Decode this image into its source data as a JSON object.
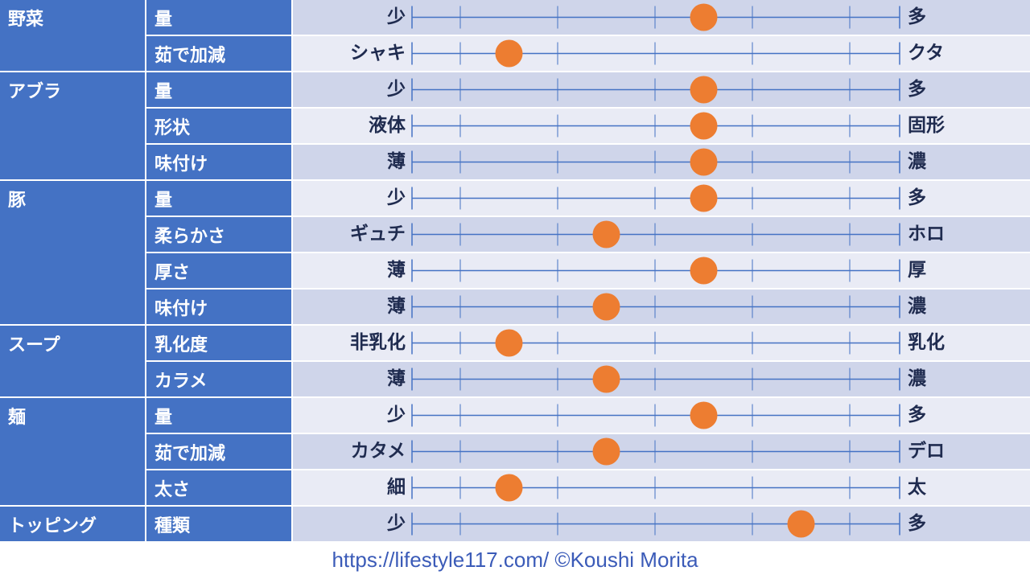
{
  "colors": {
    "header_bg": "#4472c4",
    "row_even": "#cfd5ea",
    "row_odd": "#e9ebf5",
    "line": "#4472c4",
    "marker": "#ed7d31",
    "label_text": "#1f2b4f",
    "footer_text": "#3b5bb8"
  },
  "chart_data": {
    "type": "dot-scale",
    "scale": {
      "min": 0,
      "max": 5,
      "ticks": [
        0,
        1,
        2,
        3,
        4,
        5
      ]
    },
    "groups": [
      {
        "category": "野菜",
        "rows": [
          {
            "attribute": "量",
            "left": "少",
            "right": "多",
            "value": 3.5
          },
          {
            "attribute": "茹で加減",
            "left": "シャキ",
            "right": "クタ",
            "value": 1.5
          }
        ]
      },
      {
        "category": "アブラ",
        "rows": [
          {
            "attribute": "量",
            "left": "少",
            "right": "多",
            "value": 3.5
          },
          {
            "attribute": "形状",
            "left": "液体",
            "right": "固形",
            "value": 3.5
          },
          {
            "attribute": "味付け",
            "left": "薄",
            "right": "濃",
            "value": 3.5
          }
        ]
      },
      {
        "category": "豚",
        "rows": [
          {
            "attribute": "量",
            "left": "少",
            "right": "多",
            "value": 3.5
          },
          {
            "attribute": "柔らかさ",
            "left": "ギュチ",
            "right": "ホロ",
            "value": 2.5
          },
          {
            "attribute": "厚さ",
            "left": "薄",
            "right": "厚",
            "value": 3.5
          },
          {
            "attribute": "味付け",
            "left": "薄",
            "right": "濃",
            "value": 2.5
          }
        ]
      },
      {
        "category": "スープ",
        "rows": [
          {
            "attribute": "乳化度",
            "left": "非乳化",
            "right": "乳化",
            "value": 1.5
          },
          {
            "attribute": "カラメ",
            "left": "薄",
            "right": "濃",
            "value": 2.5
          }
        ]
      },
      {
        "category": "麺",
        "rows": [
          {
            "attribute": "量",
            "left": "少",
            "right": "多",
            "value": 3.5
          },
          {
            "attribute": "茹で加減",
            "left": "カタメ",
            "right": "デロ",
            "value": 2.5
          },
          {
            "attribute": "太さ",
            "left": "細",
            "right": "太",
            "value": 1.5
          }
        ]
      },
      {
        "category": "トッピング",
        "rows": [
          {
            "attribute": "種類",
            "left": "少",
            "right": "多",
            "value": 4.5
          }
        ]
      }
    ]
  },
  "footer": {
    "text": "https://lifestyle117.com/  ©Koushi Morita"
  }
}
